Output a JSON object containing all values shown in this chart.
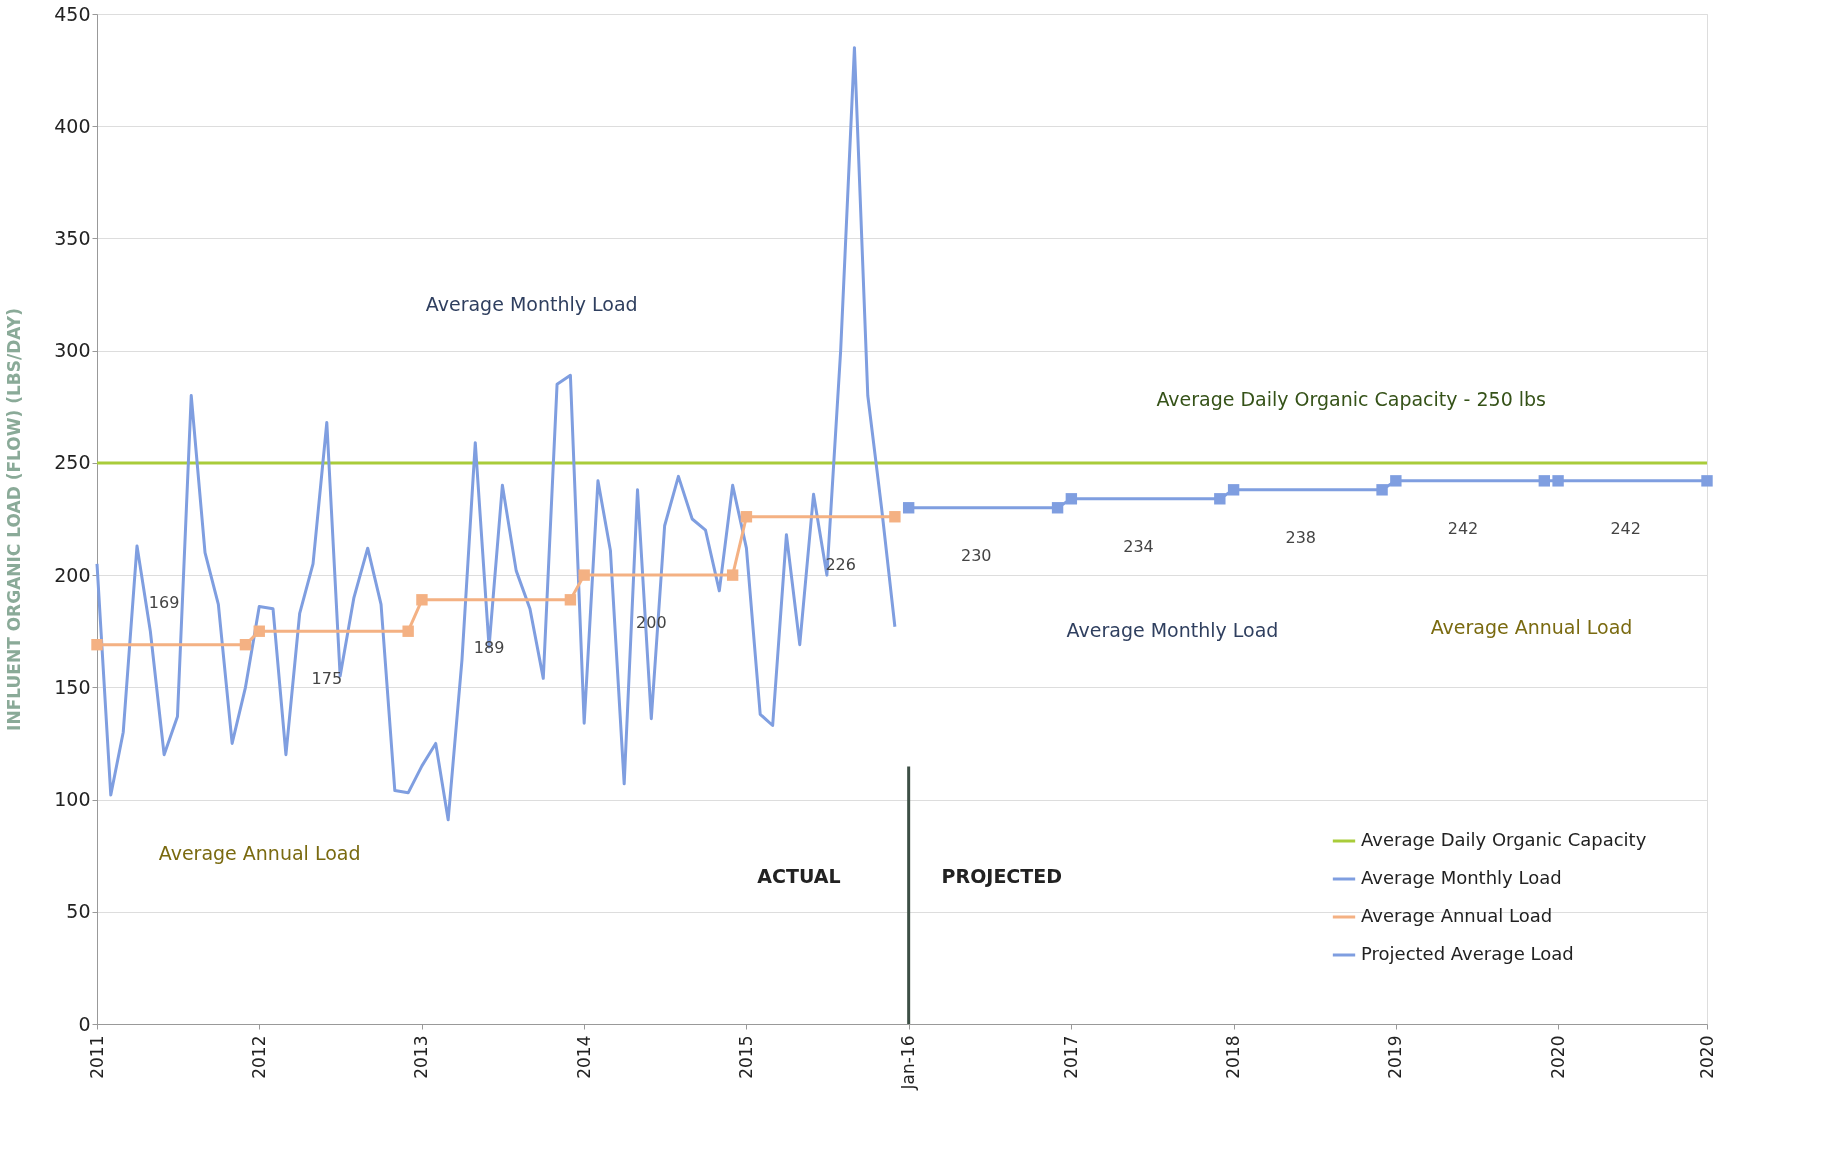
{
  "chart_data": {
    "type": "line",
    "ylabel": "INFLUENT ORGANIC LOAD (FLOW) (LBS/DAY)",
    "xlim": [
      "2011-01",
      "2020-12"
    ],
    "xticks": [
      {
        "value": "2011-01",
        "label": "2011"
      },
      {
        "value": "2012-01",
        "label": "2012"
      },
      {
        "value": "2013-01",
        "label": "2013"
      },
      {
        "value": "2014-01",
        "label": "2014"
      },
      {
        "value": "2015-01",
        "label": "2015"
      },
      {
        "value": "2016-01",
        "label": "Jan-16"
      },
      {
        "value": "2017-01",
        "label": "2017"
      },
      {
        "value": "2018-01",
        "label": "2018"
      },
      {
        "value": "2019-01",
        "label": "2019"
      },
      {
        "value": "2020-01",
        "label": "2020"
      },
      {
        "value": "2020-12",
        "label": "2020"
      }
    ],
    "ylim": [
      0,
      450
    ],
    "yticks": [
      0,
      50,
      100,
      150,
      200,
      250,
      300,
      350,
      400,
      450
    ],
    "grid": "y",
    "legend": "bottom right",
    "series": [
      {
        "name": "Average Daily Organic Capacity",
        "color": "#a9cc3a",
        "marker": "none",
        "x": [
          "2011-01",
          "2020-12"
        ],
        "values": [
          250,
          250
        ]
      },
      {
        "name": "Average Monthly Load",
        "color": "#7f9ee0",
        "marker": "none",
        "x": [
          "2011-01",
          "2011-02",
          "2011-03",
          "2011-04",
          "2011-05",
          "2011-06",
          "2011-07",
          "2011-08",
          "2011-09",
          "2011-10",
          "2011-11",
          "2011-12",
          "2012-01",
          "2012-02",
          "2012-03",
          "2012-04",
          "2012-05",
          "2012-06",
          "2012-07",
          "2012-08",
          "2012-09",
          "2012-10",
          "2012-11",
          "2012-12",
          "2013-01",
          "2013-02",
          "2013-03",
          "2013-04",
          "2013-05",
          "2013-06",
          "2013-07",
          "2013-08",
          "2013-09",
          "2013-10",
          "2013-11",
          "2013-12",
          "2014-01",
          "2014-02",
          "2014-03",
          "2014-04",
          "2014-05",
          "2014-06",
          "2014-07",
          "2014-08",
          "2014-09",
          "2014-10",
          "2014-11",
          "2014-12",
          "2015-01",
          "2015-02",
          "2015-03",
          "2015-04",
          "2015-05",
          "2015-06",
          "2015-07",
          "2015-08",
          "2015-09",
          "2015-10",
          "2015-11",
          "2015-12"
        ],
        "values": [
          205,
          102,
          130,
          213,
          175,
          120,
          137,
          280,
          210,
          187,
          125,
          150,
          186,
          185,
          120,
          183,
          205,
          268,
          155,
          190,
          212,
          187,
          104,
          103,
          115,
          125,
          91,
          162,
          259,
          168,
          240,
          202,
          185,
          154,
          285,
          289,
          134,
          242,
          211,
          107,
          238,
          136,
          222,
          244,
          225,
          220,
          193,
          240,
          212,
          138,
          133,
          218,
          169,
          236,
          200,
          300,
          435,
          280,
          230,
          177
        ]
      },
      {
        "name": "Average Annual Load",
        "color": "#f4b183",
        "marker": "square",
        "x": [
          "2011-01",
          "2011-12",
          "2012-01",
          "2012-12",
          "2013-01",
          "2013-12",
          "2014-01",
          "2014-12",
          "2015-01",
          "2015-12"
        ],
        "values": [
          169,
          169,
          175,
          175,
          189,
          189,
          200,
          200,
          226,
          226
        ]
      },
      {
        "name": "Projected Average Load",
        "color": "#7f9ee0",
        "marker": "square",
        "x": [
          "2016-01",
          "2016-12",
          "2017-01",
          "2017-12",
          "2018-01",
          "2018-12",
          "2019-01",
          "2019-12",
          "2020-01",
          "2020-12"
        ],
        "values": [
          230,
          230,
          234,
          234,
          238,
          238,
          242,
          242,
          242,
          242
        ]
      }
    ],
    "ref_lines": [
      {
        "axis": "x",
        "value": "2016-01",
        "color": "#3d4f45"
      }
    ],
    "annotations": [
      {
        "text": "169",
        "x": "2011-06",
        "y": 169
      },
      {
        "text": "175",
        "x": "2012-06",
        "y": 175
      },
      {
        "text": "189",
        "x": "2013-06",
        "y": 189
      },
      {
        "text": "200",
        "x": "2014-06",
        "y": 200
      },
      {
        "text": "226",
        "x": "2015-08",
        "y": 226
      },
      {
        "text": "230",
        "x": "2016-06",
        "y": 230
      },
      {
        "text": "234",
        "x": "2017-06",
        "y": 234
      },
      {
        "text": "238",
        "x": "2018-06",
        "y": 238
      },
      {
        "text": "242",
        "x": "2019-06",
        "y": 242
      },
      {
        "text": "242",
        "x": "2020-06",
        "y": 242
      },
      "Average Monthly Load",
      "Average Annual Load",
      "Average Daily Organic Capacity - 250 lbs",
      "Average Monthly Load",
      "Average Annual Load",
      "ACTUAL",
      "PROJECTED"
    ]
  }
}
